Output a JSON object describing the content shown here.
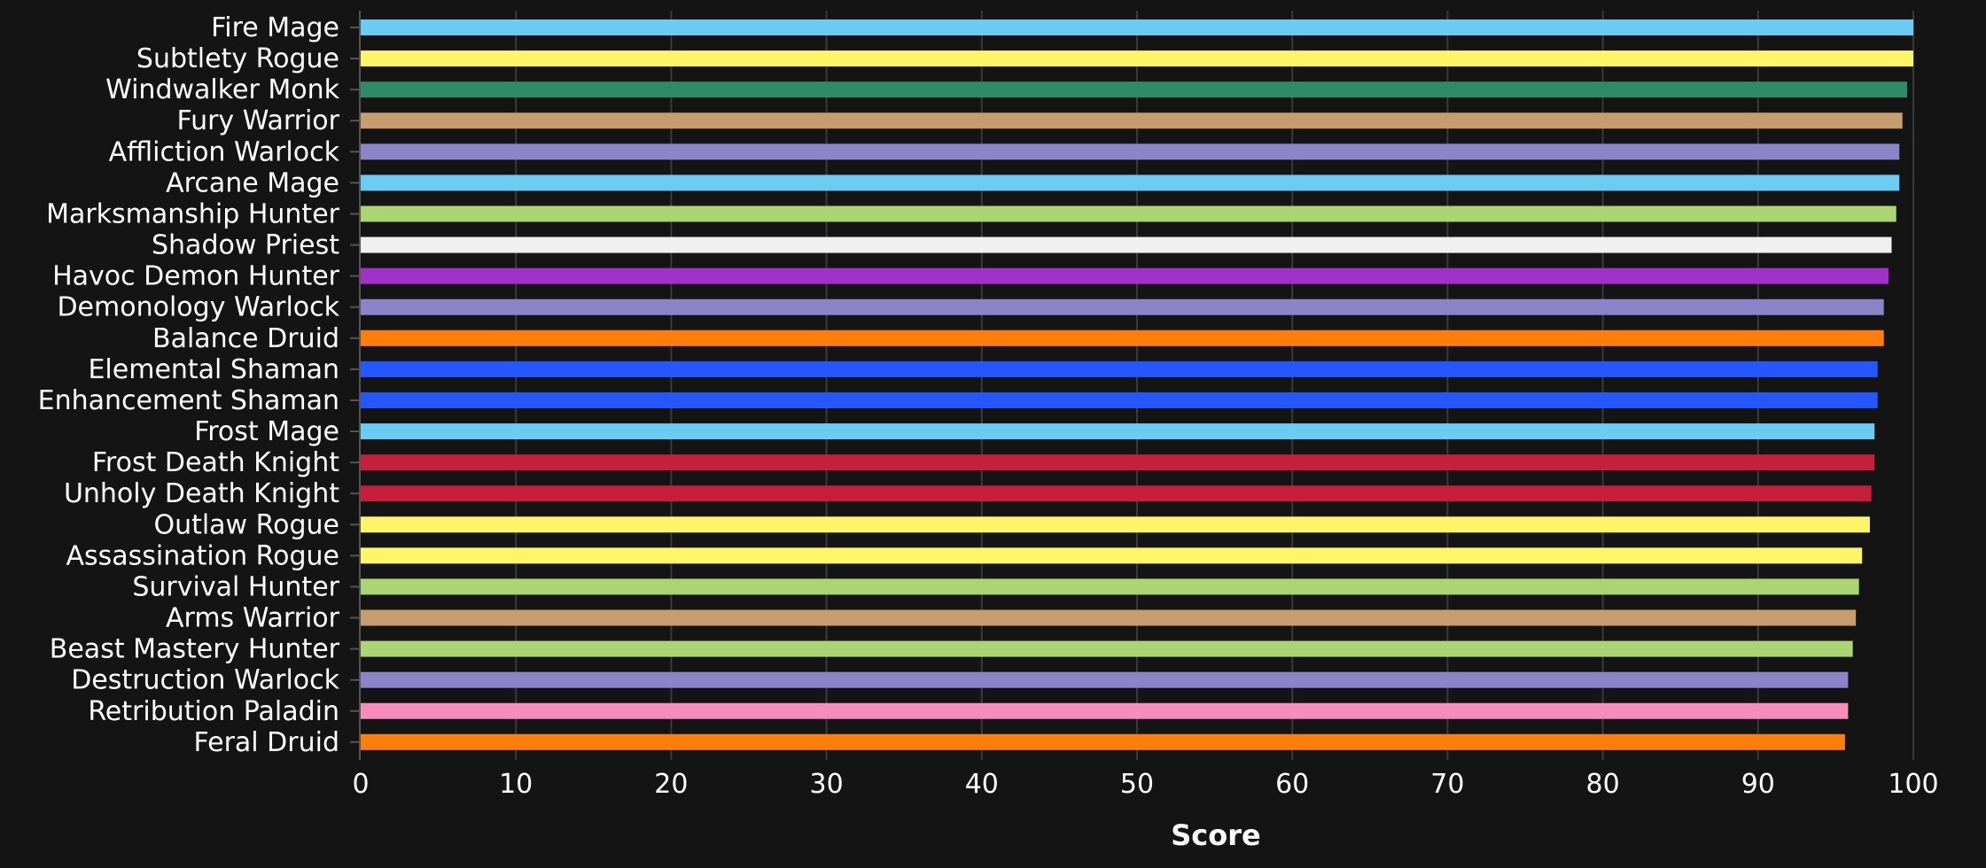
{
  "chart_data": {
    "type": "bar",
    "orientation": "horizontal",
    "categories": [
      "Fire Mage",
      "Subtlety Rogue",
      "Windwalker Monk",
      "Fury Warrior",
      "Affliction Warlock",
      "Arcane Mage",
      "Marksmanship Hunter",
      "Shadow Priest",
      "Havoc Demon Hunter",
      "Demonology Warlock",
      "Balance Druid",
      "Elemental Shaman",
      "Enhancement Shaman",
      "Frost Mage",
      "Frost Death Knight",
      "Unholy Death Knight",
      "Outlaw Rogue",
      "Assassination Rogue",
      "Survival Hunter",
      "Arms Warrior",
      "Beast Mastery Hunter",
      "Destruction Warlock",
      "Retribution Paladin",
      "Feral Druid"
    ],
    "values": [
      100,
      100,
      99.6,
      99.3,
      99.1,
      99.1,
      98.9,
      98.6,
      98.4,
      98.1,
      98.1,
      97.7,
      97.7,
      97.5,
      97.5,
      97.3,
      97.2,
      96.7,
      96.5,
      96.3,
      96.1,
      95.8,
      95.8,
      95.6
    ],
    "colors": [
      "#69ccf0",
      "#fff569",
      "#2e8b6a",
      "#c79c6e",
      "#8c83c8",
      "#69ccf0",
      "#abd473",
      "#f0f0f0",
      "#a330c9",
      "#8c83c8",
      "#ff7d0a",
      "#2457ff",
      "#2457ff",
      "#69ccf0",
      "#c41f3b",
      "#c41f3b",
      "#fff569",
      "#fff569",
      "#abd473",
      "#c79c6e",
      "#abd473",
      "#8c83c8",
      "#f58cba",
      "#ff7d0a"
    ],
    "xlabel": "Score",
    "ylabel": "",
    "xlim": [
      0,
      100
    ],
    "xticks": [
      "0",
      "10",
      "20",
      "30",
      "40",
      "50",
      "60",
      "70",
      "80",
      "90",
      "100"
    ],
    "grid": true,
    "background": "#141414"
  }
}
